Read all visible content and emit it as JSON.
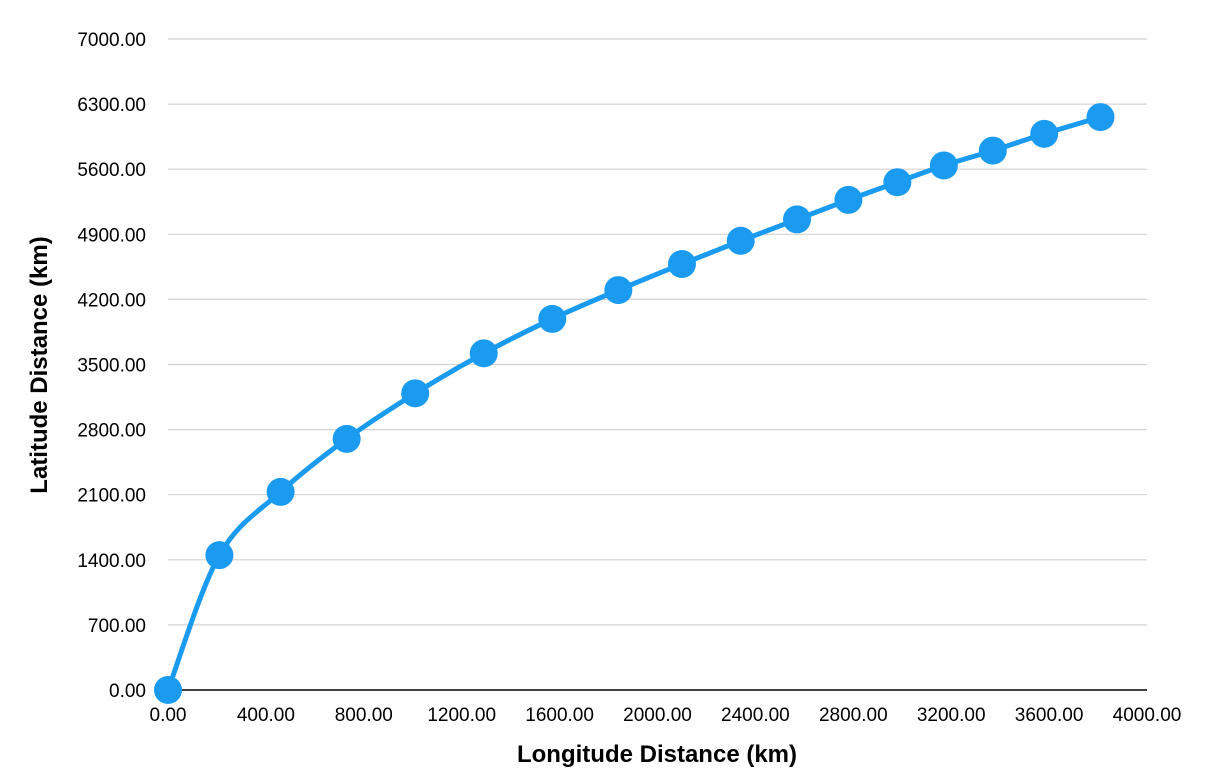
{
  "chart_data": {
    "type": "line",
    "title": "",
    "xlabel": "Longitude Distance (km)",
    "ylabel": "Latitude Distance (km)",
    "xlim": [
      0,
      4000
    ],
    "ylim": [
      0,
      7000
    ],
    "x_ticks": [
      0,
      400,
      800,
      1200,
      1600,
      2000,
      2400,
      2800,
      3200,
      3600,
      4000
    ],
    "y_ticks": [
      0,
      700,
      1400,
      2100,
      2800,
      3500,
      4200,
      4900,
      5600,
      6300,
      7000
    ],
    "x_tick_labels": [
      "0.00",
      "400.00",
      "800.00",
      "1200.00",
      "1600.00",
      "2000.00",
      "2400.00",
      "2800.00",
      "3200.00",
      "3600.00",
      "4000.00"
    ],
    "y_tick_labels": [
      "0.00",
      "700.00",
      "1400.00",
      "2100.00",
      "2800.00",
      "3500.00",
      "4200.00",
      "4900.00",
      "5600.00",
      "6300.00",
      "7000.00"
    ],
    "grid": true,
    "legend": "none",
    "series": [
      {
        "color": "#1a9bf0",
        "marker": "circle",
        "smooth": true,
        "x": [
          0,
          210,
          460,
          730,
          1010,
          1290,
          1570,
          1840,
          2100,
          2340,
          2570,
          2780,
          2980,
          3170,
          3370,
          3580,
          3810
        ],
        "y": [
          0,
          1450,
          2130,
          2700,
          3190,
          3620,
          3990,
          4300,
          4580,
          4830,
          5060,
          5270,
          5460,
          5640,
          5800,
          5980,
          6160
        ]
      }
    ]
  }
}
